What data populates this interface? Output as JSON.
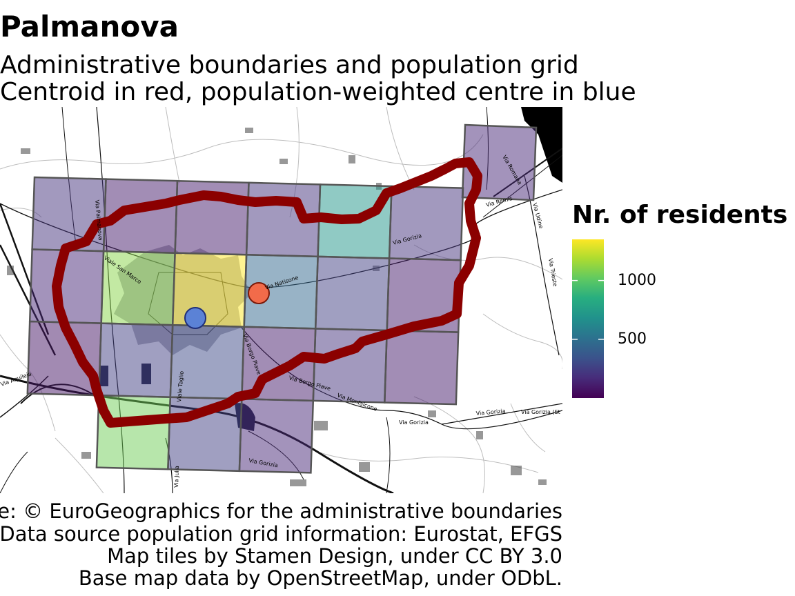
{
  "title": "Palmanova",
  "subtitle_lines": [
    "Administrative boundaries and population grid",
    "Centroid in red, population-weighted centre in blue"
  ],
  "legend": {
    "title": "Nr. of residents",
    "ticks": [
      {
        "value": 1000,
        "label": "1000"
      },
      {
        "value": 500,
        "label": "500"
      }
    ],
    "range": [
      0,
      1350
    ],
    "colormap": "viridis"
  },
  "caption_lines": [
    "Data source: © EuroGeographics for the administrative boundaries",
    "Data source population grid information: Eurostat, EFGS",
    "Map tiles by Stamen Design, under CC BY 3.0",
    "Base map data by OpenStreetMap, under ODbL."
  ],
  "road_labels": [
    "Via Palmanova",
    "Viale San Marco",
    "Via Natisone",
    "Via Gorizia",
    "Via Remis",
    "Via Udine",
    "Via Trieste",
    "Via Borgo Piave",
    "Via Monfalcone",
    "Viale Taglio",
    "Via Julia",
    "Via Aquileia",
    "Via Gorizia (St",
    "Via Romana"
  ],
  "markers": {
    "centroid_color": "#f26b4a",
    "weighted_centre_color": "#5b82d6"
  },
  "colors": {
    "boundary": "#8b0000",
    "grid_border": "#555555"
  },
  "chart_data": {
    "type": "heatmap",
    "title": "Palmanova",
    "legend_title": "Nr. of residents",
    "legend_ticks": [
      500,
      1000
    ],
    "grid_cells": [
      {
        "row": 0,
        "col": 6,
        "value": 150
      },
      {
        "row": 1,
        "col": 0,
        "value": 200
      },
      {
        "row": 1,
        "col": 1,
        "value": 100
      },
      {
        "row": 1,
        "col": 2,
        "value": 100
      },
      {
        "row": 1,
        "col": 3,
        "value": 200
      },
      {
        "row": 1,
        "col": 4,
        "value": 700
      },
      {
        "row": 1,
        "col": 5,
        "value": 200
      },
      {
        "row": 2,
        "col": 0,
        "value": 150
      },
      {
        "row": 2,
        "col": 1,
        "value": 1100
      },
      {
        "row": 2,
        "col": 2,
        "value": 1350
      },
      {
        "row": 2,
        "col": 3,
        "value": 450
      },
      {
        "row": 2,
        "col": 4,
        "value": 250
      },
      {
        "row": 2,
        "col": 5,
        "value": 100
      },
      {
        "row": 3,
        "col": 0,
        "value": 80
      },
      {
        "row": 3,
        "col": 1,
        "value": 250
      },
      {
        "row": 3,
        "col": 2,
        "value": 300
      },
      {
        "row": 3,
        "col": 3,
        "value": 100
      },
      {
        "row": 3,
        "col": 4,
        "value": 200
      },
      {
        "row": 3,
        "col": 5,
        "value": 100
      },
      {
        "row": 4,
        "col": 1,
        "value": 1050
      },
      {
        "row": 4,
        "col": 2,
        "value": 250
      },
      {
        "row": 4,
        "col": 3,
        "value": 150
      }
    ]
  }
}
